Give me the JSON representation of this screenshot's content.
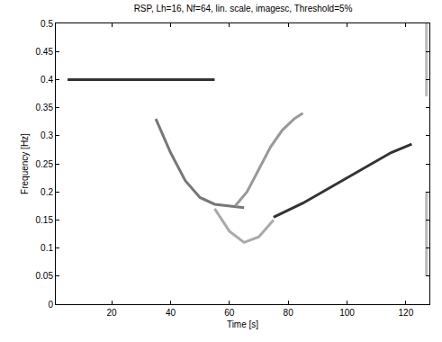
{
  "chart_data": {
    "type": "line",
    "title": "RSP, Lh=16, Nf=64, lin. scale, imagesc, Threshold=5%",
    "x_label": "Time [s]",
    "y_label": "Frequency [Hz]",
    "xlim": [
      1,
      128
    ],
    "ylim": [
      0,
      0.5
    ],
    "xticks": [
      20,
      40,
      60,
      80,
      100,
      120
    ],
    "yticks": [
      0,
      0.05,
      0.1,
      0.15,
      0.2,
      0.25,
      0.3,
      0.35,
      0.4,
      0.45,
      0.5
    ],
    "grid": false,
    "line_style": "solid",
    "series": [
      {
        "color": "#333333",
        "x": [
          5,
          10,
          15,
          20,
          25,
          30,
          35,
          40,
          45,
          50,
          55
        ],
        "values": [
          0.4,
          0.4,
          0.4,
          0.4,
          0.4,
          0.4,
          0.4,
          0.4,
          0.4,
          0.4,
          0.4
        ]
      },
      {
        "color": "#777777",
        "x": [
          35,
          40,
          45,
          50,
          55,
          60,
          65
        ],
        "values": [
          0.33,
          0.27,
          0.22,
          0.19,
          0.178,
          0.175,
          0.172
        ]
      },
      {
        "color": "#aaaaaa",
        "x": [
          55,
          60,
          65,
          70,
          75
        ],
        "values": [
          0.17,
          0.13,
          0.11,
          0.12,
          0.15
        ]
      },
      {
        "color": "#999999",
        "x": [
          62,
          66,
          70,
          74,
          78,
          82,
          85
        ],
        "values": [
          0.175,
          0.2,
          0.24,
          0.28,
          0.31,
          0.33,
          0.34
        ]
      },
      {
        "color": "#333333",
        "x": [
          75,
          85,
          95,
          105,
          115,
          122
        ],
        "values": [
          0.155,
          0.18,
          0.21,
          0.24,
          0.27,
          0.285
        ]
      },
      {
        "color": "#bbbbbb",
        "x": [
          127,
          127,
          127,
          127,
          127
        ],
        "values": [
          0.37,
          0.5,
          null,
          0.05,
          0.2
        ]
      }
    ]
  }
}
